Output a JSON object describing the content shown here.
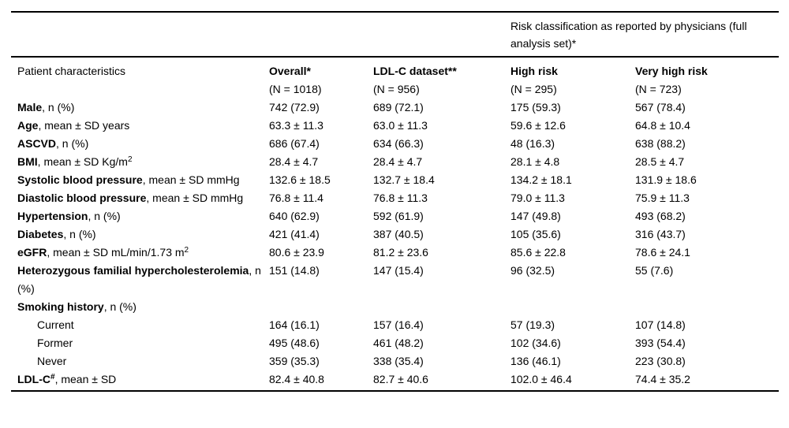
{
  "colors": {
    "background": "#ffffff",
    "text": "#000000",
    "rule": "#000000"
  },
  "table": {
    "spanner_heading": "Risk classification as reported by physicians (full analysis set)*",
    "header": {
      "col1": "Patient characteristics",
      "cols": [
        {
          "label": "Overall*",
          "n": "(N = 1018)"
        },
        {
          "label": "LDL-C dataset**",
          "n": "(N = 956)"
        },
        {
          "label": "High risk",
          "n": "(N = 295)"
        },
        {
          "label": "Very high risk",
          "n": "(N = 723)"
        }
      ]
    },
    "rows": [
      {
        "indent": false,
        "segments": [
          {
            "text": "Male",
            "bold": true
          },
          {
            "text": ", n (%)"
          }
        ],
        "values": [
          "742 (72.9)",
          "689 (72.1)",
          "175 (59.3)",
          "567 (78.4)"
        ]
      },
      {
        "indent": false,
        "segments": [
          {
            "text": "Age",
            "bold": true
          },
          {
            "text": ", mean ± SD years"
          }
        ],
        "values": [
          "63.3 ± 11.3",
          "63.0 ± 11.3",
          "59.6 ± 12.6",
          "64.8 ± 10.4"
        ]
      },
      {
        "indent": false,
        "segments": [
          {
            "text": "ASCVD",
            "bold": true
          },
          {
            "text": ", n (%)"
          }
        ],
        "values": [
          "686 (67.4)",
          "634 (66.3)",
          "48 (16.3)",
          "638 (88.2)"
        ]
      },
      {
        "indent": false,
        "segments": [
          {
            "text": "BMI",
            "bold": true
          },
          {
            "text": ", mean ± SD Kg/m"
          },
          {
            "text": "2",
            "sup": true
          }
        ],
        "values": [
          "28.4 ± 4.7",
          "28.4 ± 4.7",
          "28.1 ± 4.8",
          "28.5 ± 4.7"
        ]
      },
      {
        "indent": false,
        "segments": [
          {
            "text": "Systolic blood pressure",
            "bold": true
          },
          {
            "text": ", mean ± SD mmHg"
          }
        ],
        "values": [
          "132.6 ± 18.5",
          "132.7 ± 18.4",
          "134.2 ± 18.1",
          "131.9 ± 18.6"
        ]
      },
      {
        "indent": false,
        "segments": [
          {
            "text": "Diastolic blood pressure",
            "bold": true
          },
          {
            "text": ", mean ± SD mmHg"
          }
        ],
        "values": [
          "76.8 ± 11.4",
          "76.8 ± 11.3",
          "79.0 ± 11.3",
          "75.9 ± 11.3"
        ]
      },
      {
        "indent": false,
        "segments": [
          {
            "text": "Hypertension",
            "bold": true
          },
          {
            "text": ", n (%)"
          }
        ],
        "values": [
          "640 (62.9)",
          "592 (61.9)",
          "147 (49.8)",
          "493 (68.2)"
        ]
      },
      {
        "indent": false,
        "segments": [
          {
            "text": "Diabetes",
            "bold": true
          },
          {
            "text": ", n (%)"
          }
        ],
        "values": [
          "421 (41.4)",
          "387 (40.5)",
          "105 (35.6)",
          "316 (43.7)"
        ]
      },
      {
        "indent": false,
        "segments": [
          {
            "text": "eGFR",
            "bold": true
          },
          {
            "text": ", mean ± SD mL/min/1.73 m"
          },
          {
            "text": "2",
            "sup": true
          }
        ],
        "values": [
          "80.6 ± 23.9",
          "81.2 ± 23.6",
          "85.6 ± 22.8",
          "78.6 ± 24.1"
        ]
      },
      {
        "indent": false,
        "segments": [
          {
            "text": "Heterozygous familial hypercholesterolemia",
            "bold": true
          },
          {
            "text": ", n (%)"
          }
        ],
        "values": [
          "151 (14.8)",
          "147 (15.4)",
          "96 (32.5)",
          "55 (7.6)"
        ]
      },
      {
        "indent": false,
        "segments": [
          {
            "text": "Smoking history",
            "bold": true
          },
          {
            "text": ", n (%)"
          }
        ],
        "values": [
          "",
          "",
          "",
          ""
        ]
      },
      {
        "indent": true,
        "segments": [
          {
            "text": "Current"
          }
        ],
        "values": [
          "164 (16.1)",
          "157 (16.4)",
          "57 (19.3)",
          "107 (14.8)"
        ]
      },
      {
        "indent": true,
        "segments": [
          {
            "text": "Former"
          }
        ],
        "values": [
          "495 (48.6)",
          "461 (48.2)",
          "102 (34.6)",
          "393 (54.4)"
        ]
      },
      {
        "indent": true,
        "segments": [
          {
            "text": "Never"
          }
        ],
        "values": [
          "359 (35.3)",
          "338 (35.4)",
          "136 (46.1)",
          "223 (30.8)"
        ]
      },
      {
        "indent": false,
        "segments": [
          {
            "text": "LDL-C",
            "bold": true
          },
          {
            "text": "#",
            "bold": true,
            "sup": true
          },
          {
            "text": ", mean ± SD"
          }
        ],
        "values": [
          "82.4 ± 40.8",
          "82.7 ± 40.6",
          "102.0 ± 46.4",
          "74.4 ± 35.2"
        ]
      }
    ]
  }
}
